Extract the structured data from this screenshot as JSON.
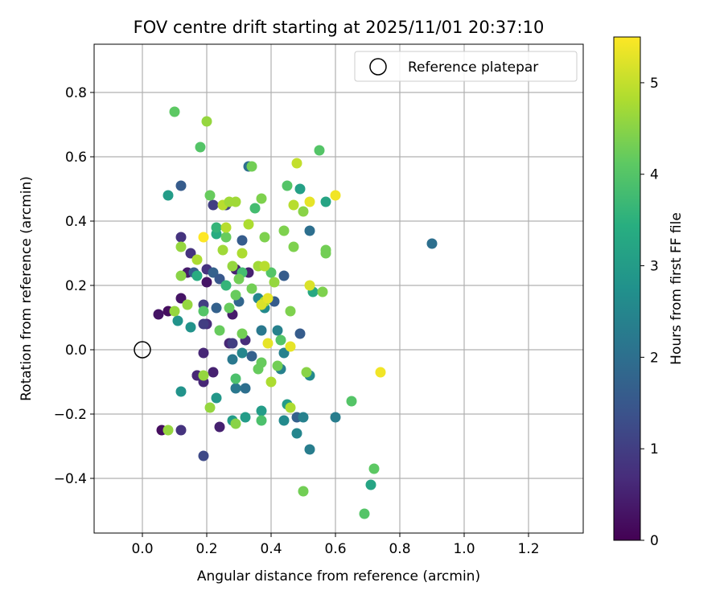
{
  "chart_data": {
    "type": "scatter",
    "title": "FOV centre drift starting at 2025/11/01 20:37:10",
    "xlabel": "Angular distance from reference (arcmin)",
    "ylabel": "Rotation from reference (arcmin)",
    "xlim": [
      -0.15,
      1.37
    ],
    "ylim": [
      -0.57,
      0.95
    ],
    "xticks": [
      0.0,
      0.2,
      0.4,
      0.6,
      0.8,
      1.0,
      1.2
    ],
    "xtick_labels": [
      "0.0",
      "0.2",
      "0.4",
      "0.6",
      "0.8",
      "1.0",
      "1.2"
    ],
    "yticks": [
      -0.4,
      -0.2,
      0.0,
      0.2,
      0.4,
      0.6,
      0.8
    ],
    "ytick_labels": [
      "−0.4",
      "−0.2",
      "0.0",
      "0.2",
      "0.4",
      "0.6",
      "0.8"
    ],
    "grid": true,
    "legend": {
      "position": "top-right",
      "entries": [
        "Reference platepar"
      ]
    },
    "reference_point": {
      "x": 0.0,
      "y": 0.0,
      "label": "Reference platepar"
    },
    "colorbar": {
      "label": "Hours from first FF file",
      "min": 0,
      "max": 5.5,
      "colormap": "viridis",
      "ticks": [
        0,
        1,
        2,
        3,
        4,
        5
      ],
      "tick_labels": [
        "0",
        "1",
        "2",
        "3",
        "4",
        "5"
      ]
    },
    "points": [
      [
        0.05,
        0.11,
        0.3
      ],
      [
        0.08,
        0.12,
        0.2
      ],
      [
        0.06,
        -0.25,
        0.2
      ],
      [
        0.12,
        0.16,
        0.3
      ],
      [
        0.14,
        0.24,
        0.4
      ],
      [
        0.17,
        -0.08,
        0.3
      ],
      [
        0.2,
        0.21,
        0.3
      ],
      [
        0.22,
        -0.07,
        0.5
      ],
      [
        0.24,
        -0.24,
        0.5
      ],
      [
        0.28,
        0.11,
        0.4
      ],
      [
        0.29,
        0.25,
        0.5
      ],
      [
        0.27,
        0.02,
        0.6
      ],
      [
        0.19,
        -0.01,
        0.6
      ],
      [
        0.2,
        0.08,
        0.7
      ],
      [
        0.12,
        0.35,
        0.8
      ],
      [
        0.15,
        0.3,
        0.8
      ],
      [
        0.2,
        0.25,
        0.8
      ],
      [
        0.19,
        -0.1,
        0.6
      ],
      [
        0.17,
        -0.08,
        0.6
      ],
      [
        0.12,
        -0.25,
        0.8
      ],
      [
        0.19,
        0.08,
        1.0
      ],
      [
        0.19,
        0.14,
        1.0
      ],
      [
        0.22,
        0.45,
        1.0
      ],
      [
        0.26,
        0.45,
        1.1
      ],
      [
        0.28,
        0.02,
        1.0
      ],
      [
        0.32,
        0.03,
        0.7
      ],
      [
        0.33,
        0.24,
        0.5
      ],
      [
        0.19,
        -0.33,
        1.2
      ],
      [
        0.12,
        0.51,
        1.6
      ],
      [
        0.16,
        0.24,
        1.6
      ],
      [
        0.22,
        0.24,
        1.7
      ],
      [
        0.24,
        0.22,
        1.5
      ],
      [
        0.23,
        0.13,
        1.7
      ],
      [
        0.31,
        0.34,
        1.6
      ],
      [
        0.3,
        0.15,
        1.8
      ],
      [
        0.34,
        -0.02,
        1.7
      ],
      [
        0.41,
        0.15,
        1.6
      ],
      [
        0.44,
        0.23,
        1.6
      ],
      [
        0.49,
        0.05,
        1.6
      ],
      [
        0.48,
        -0.21,
        1.7
      ],
      [
        0.52,
        0.37,
        2.0
      ],
      [
        0.33,
        0.57,
        2.0
      ],
      [
        0.32,
        -0.12,
        2.0
      ],
      [
        0.29,
        -0.12,
        2.2
      ],
      [
        0.28,
        -0.03,
        2.2
      ],
      [
        0.37,
        0.06,
        2.2
      ],
      [
        0.42,
        0.06,
        2.4
      ],
      [
        0.43,
        -0.06,
        2.4
      ],
      [
        0.44,
        -0.01,
        2.4
      ],
      [
        0.5,
        -0.21,
        2.4
      ],
      [
        0.52,
        -0.31,
        2.3
      ],
      [
        0.6,
        -0.21,
        2.3
      ],
      [
        0.9,
        0.33,
        2.0
      ],
      [
        0.52,
        -0.08,
        2.6
      ],
      [
        0.48,
        -0.26,
        2.5
      ],
      [
        0.44,
        -0.22,
        2.6
      ],
      [
        0.38,
        0.13,
        2.6
      ],
      [
        0.36,
        0.16,
        2.5
      ],
      [
        0.31,
        -0.01,
        2.5
      ],
      [
        0.15,
        0.07,
        2.8
      ],
      [
        0.11,
        0.09,
        2.8
      ],
      [
        0.12,
        -0.13,
        2.8
      ],
      [
        0.08,
        0.48,
        3.0
      ],
      [
        0.23,
        -0.15,
        2.9
      ],
      [
        0.28,
        -0.22,
        3.0
      ],
      [
        0.32,
        -0.21,
        3.0
      ],
      [
        0.37,
        -0.19,
        3.0
      ],
      [
        0.45,
        -0.17,
        3.0
      ],
      [
        0.49,
        0.5,
        3.1
      ],
      [
        0.57,
        0.46,
        3.2
      ],
      [
        0.71,
        -0.42,
        3.2
      ],
      [
        0.53,
        0.18,
        3.3
      ],
      [
        0.23,
        0.36,
        3.4
      ],
      [
        0.17,
        0.23,
        3.4
      ],
      [
        0.26,
        0.2,
        3.6
      ],
      [
        0.23,
        0.38,
        3.6
      ],
      [
        0.31,
        0.24,
        3.8
      ],
      [
        0.35,
        0.44,
        3.8
      ],
      [
        0.29,
        -0.09,
        3.9
      ],
      [
        0.37,
        -0.22,
        3.9
      ],
      [
        0.4,
        0.24,
        4.0
      ],
      [
        0.43,
        0.03,
        4.0
      ],
      [
        0.45,
        0.51,
        4.0
      ],
      [
        0.55,
        0.62,
        4.0
      ],
      [
        0.65,
        -0.16,
        4.0
      ],
      [
        0.69,
        -0.51,
        4.0
      ],
      [
        0.72,
        -0.37,
        4.1
      ],
      [
        0.18,
        0.63,
        4.0
      ],
      [
        0.1,
        0.74,
        4.1
      ],
      [
        0.21,
        0.48,
        4.2
      ],
      [
        0.19,
        0.12,
        4.0
      ],
      [
        0.24,
        0.06,
        4.2
      ],
      [
        0.26,
        0.35,
        4.2
      ],
      [
        0.27,
        0.13,
        4.2
      ],
      [
        0.29,
        0.17,
        4.2
      ],
      [
        0.3,
        0.22,
        4.3
      ],
      [
        0.31,
        0.05,
        4.3
      ],
      [
        0.34,
        0.19,
        4.3
      ],
      [
        0.36,
        -0.06,
        4.2
      ],
      [
        0.37,
        -0.04,
        4.2
      ],
      [
        0.34,
        0.57,
        4.3
      ],
      [
        0.37,
        0.47,
        4.4
      ],
      [
        0.38,
        0.35,
        4.4
      ],
      [
        0.42,
        -0.05,
        4.3
      ],
      [
        0.44,
        0.37,
        4.4
      ],
      [
        0.46,
        0.12,
        4.4
      ],
      [
        0.47,
        0.32,
        4.4
      ],
      [
        0.5,
        0.43,
        4.5
      ],
      [
        0.51,
        -0.07,
        4.5
      ],
      [
        0.56,
        0.18,
        4.4
      ],
      [
        0.57,
        0.3,
        4.3
      ],
      [
        0.57,
        0.31,
        4.3
      ],
      [
        0.5,
        -0.44,
        4.3
      ],
      [
        0.2,
        0.71,
        4.6
      ],
      [
        0.08,
        -0.25,
        4.6
      ],
      [
        0.12,
        0.32,
        4.6
      ],
      [
        0.12,
        0.23,
        4.5
      ],
      [
        0.14,
        0.14,
        4.6
      ],
      [
        0.1,
        0.12,
        4.6
      ],
      [
        0.19,
        -0.08,
        4.6
      ],
      [
        0.21,
        -0.18,
        4.6
      ],
      [
        0.25,
        0.31,
        4.7
      ],
      [
        0.28,
        0.26,
        4.6
      ],
      [
        0.29,
        -0.23,
        4.5
      ],
      [
        0.31,
        0.3,
        4.8
      ],
      [
        0.33,
        0.39,
        4.8
      ],
      [
        0.36,
        0.26,
        4.7
      ],
      [
        0.38,
        0.26,
        4.9
      ],
      [
        0.38,
        0.15,
        4.8
      ],
      [
        0.4,
        -0.1,
        4.8
      ],
      [
        0.41,
        0.21,
        4.6
      ],
      [
        0.46,
        -0.18,
        4.8
      ],
      [
        0.47,
        0.45,
        4.9
      ],
      [
        0.48,
        0.58,
        5.0
      ],
      [
        0.26,
        0.38,
        4.9
      ],
      [
        0.25,
        0.45,
        4.9
      ],
      [
        0.27,
        0.46,
        4.7
      ],
      [
        0.29,
        0.46,
        4.7
      ],
      [
        0.17,
        0.28,
        4.8
      ],
      [
        0.37,
        0.14,
        5.2
      ],
      [
        0.39,
        0.16,
        5.3
      ],
      [
        0.39,
        0.02,
        5.3
      ],
      [
        0.46,
        0.01,
        5.3
      ],
      [
        0.52,
        0.46,
        5.3
      ],
      [
        0.52,
        0.2,
        5.2
      ],
      [
        0.6,
        0.48,
        5.4
      ],
      [
        0.74,
        -0.07,
        5.4
      ],
      [
        0.19,
        0.35,
        5.5
      ]
    ]
  }
}
